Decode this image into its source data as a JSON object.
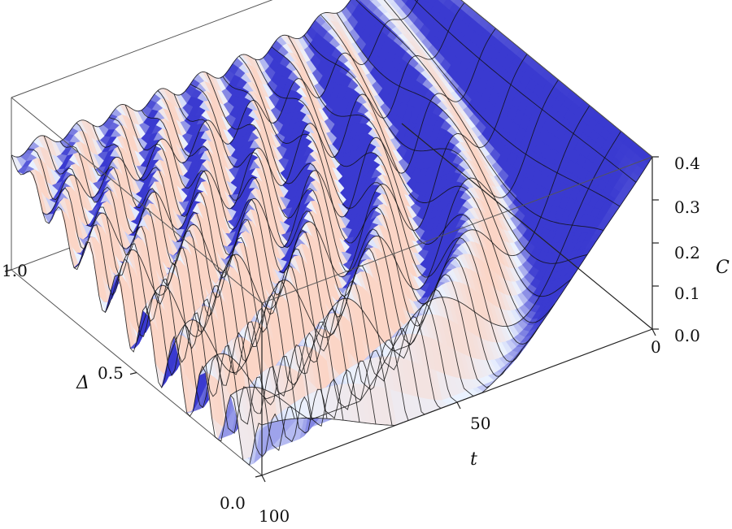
{
  "chart_data": {
    "type": "surface3d",
    "title": "",
    "axes": {
      "x": {
        "label": "t",
        "range": [
          0,
          100
        ],
        "ticks": [
          0,
          50,
          100
        ],
        "tick_labels": [
          "0",
          "50",
          "100"
        ]
      },
      "y": {
        "label": "Δ",
        "range": [
          0.0,
          1.0
        ],
        "ticks": [
          0.0,
          0.5,
          1.0
        ],
        "tick_labels": [
          "0.0",
          "0.5",
          "1.0"
        ]
      },
      "z": {
        "label": "C",
        "range": [
          0.0,
          0.4
        ],
        "ticks": [
          0.0,
          0.1,
          0.2,
          0.3,
          0.4
        ],
        "tick_labels": [
          "0.0",
          "0.1",
          "0.2",
          "0.3",
          "0.4"
        ]
      }
    },
    "surface": {
      "description_values": {
        "C_at_t0_all_delta": 0.4,
        "C_min_at_delta0_t40": 0.05,
        "C_oscillation_amplitude_at_delta1": 0.02,
        "C_mean_at_delta1_large_t": 0.27
      },
      "colors": {
        "low": "#3a3ad0",
        "mid": "#eaf2ff",
        "high": "#fbd5c6"
      }
    },
    "box": true,
    "grid": false
  }
}
